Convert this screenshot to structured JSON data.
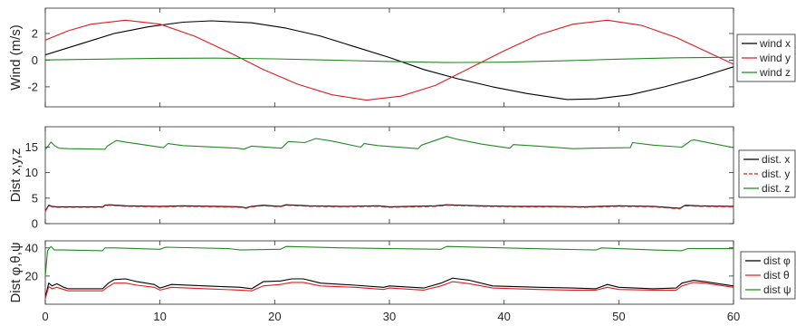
{
  "chart_data": [
    {
      "type": "line",
      "ylabel": "Wind (m/s)",
      "xlim": [
        0,
        60
      ],
      "ylim": [
        -3.5,
        3.9
      ],
      "yticks": [
        2,
        0,
        -2
      ],
      "xtick_labels_shown": false,
      "grid": false,
      "legend_position": "right",
      "series": [
        {
          "name": "wind x",
          "color": "#000000",
          "x": [
            0,
            3,
            6,
            9,
            12,
            14.5,
            18,
            21,
            24,
            27,
            30,
            33,
            36,
            39,
            42,
            45.5,
            48,
            51,
            54,
            57,
            60
          ],
          "y": [
            0.4,
            1.2,
            2.0,
            2.5,
            2.85,
            2.95,
            2.8,
            2.4,
            1.8,
            1.0,
            0.2,
            -0.7,
            -1.4,
            -2.0,
            -2.5,
            -2.95,
            -2.9,
            -2.6,
            -2.0,
            -1.3,
            -0.5
          ]
        },
        {
          "name": "wind y",
          "color": "#e41a1c",
          "x": [
            0,
            2,
            4,
            7,
            10,
            13,
            16,
            19,
            22,
            25,
            28,
            31,
            34,
            37,
            40,
            43,
            46,
            49,
            52,
            55,
            58,
            60
          ],
          "y": [
            1.5,
            2.2,
            2.7,
            3.0,
            2.7,
            1.8,
            0.6,
            -0.7,
            -1.8,
            -2.6,
            -3.0,
            -2.7,
            -1.9,
            -0.6,
            0.7,
            1.9,
            2.7,
            3.0,
            2.6,
            1.7,
            0.5,
            -0.3
          ]
        },
        {
          "name": "wind z",
          "color": "#228b22",
          "x": [
            0,
            5,
            10,
            15,
            20,
            25,
            30,
            35,
            40,
            45,
            50,
            55,
            60
          ],
          "y": [
            0.02,
            0.08,
            0.14,
            0.15,
            0.1,
            0.0,
            -0.1,
            -0.18,
            -0.15,
            -0.05,
            0.08,
            0.18,
            0.22
          ]
        }
      ]
    },
    {
      "type": "line",
      "ylabel": "Dist x,y,z",
      "xlim": [
        0,
        60
      ],
      "ylim": [
        0,
        19
      ],
      "yticks": [
        15,
        10,
        5,
        0
      ],
      "xtick_labels_shown": false,
      "grid": false,
      "legend_position": "right",
      "series": [
        {
          "name": "dist. x",
          "color": "#000000",
          "dash": "solid",
          "x": [
            0,
            0.3,
            0.6,
            1,
            2,
            5,
            5.2,
            5.6,
            7,
            10,
            12,
            15,
            17,
            17.5,
            18,
            19,
            20.5,
            21,
            23,
            26,
            29,
            30,
            34,
            35,
            38,
            41,
            44,
            47,
            50,
            53,
            55.3,
            55.8,
            57,
            60
          ],
          "y": [
            2.5,
            3.6,
            3.4,
            3.3,
            3.3,
            3.3,
            3.6,
            3.7,
            3.5,
            3.4,
            3.5,
            3.4,
            3.3,
            3.1,
            3.4,
            3.6,
            3.4,
            3.7,
            3.5,
            3.4,
            3.5,
            3.3,
            3.5,
            3.7,
            3.5,
            3.4,
            3.4,
            3.3,
            3.5,
            3.4,
            3.0,
            3.6,
            3.5,
            3.4
          ]
        },
        {
          "name": "dist. y",
          "color": "#e41a1c",
          "dash": "dashed",
          "x": [
            0,
            0.3,
            0.6,
            1,
            2,
            5,
            5.2,
            5.6,
            7,
            10,
            12,
            15,
            17,
            17.5,
            18,
            19,
            20.5,
            21,
            23,
            26,
            29,
            30,
            34,
            35,
            38,
            41,
            44,
            47,
            50,
            53,
            55.3,
            55.8,
            57,
            60
          ],
          "y": [
            2.4,
            3.5,
            3.3,
            3.2,
            3.2,
            3.2,
            3.5,
            3.6,
            3.4,
            3.3,
            3.4,
            3.3,
            3.2,
            3.0,
            3.3,
            3.5,
            3.3,
            3.6,
            3.4,
            3.3,
            3.4,
            3.2,
            3.4,
            3.6,
            3.4,
            3.3,
            3.3,
            3.2,
            3.4,
            3.3,
            2.9,
            3.5,
            3.4,
            3.3
          ]
        },
        {
          "name": "dist. z",
          "color": "#228b22",
          "dash": "solid",
          "x": [
            0,
            0.5,
            0.8,
            1.2,
            2,
            5.2,
            5.4,
            6.2,
            7,
            10.3,
            10.7,
            12,
            16.8,
            17.3,
            18,
            20.6,
            21.2,
            22.6,
            23.6,
            25,
            27.5,
            27.8,
            29,
            32.5,
            32.8,
            35,
            36,
            38,
            40.5,
            40.8,
            43,
            46,
            47.5,
            51,
            51.2,
            53,
            55.5,
            56.3,
            56.6,
            60
          ],
          "y": [
            14.5,
            16.0,
            15.3,
            14.8,
            14.7,
            14.6,
            15.2,
            16.3,
            16.0,
            14.9,
            15.7,
            15.3,
            14.8,
            14.6,
            15.2,
            14.8,
            16.1,
            15.9,
            16.7,
            16.2,
            15.0,
            15.7,
            15.3,
            14.7,
            15.4,
            17.1,
            16.5,
            15.6,
            14.8,
            15.5,
            15.2,
            14.7,
            14.8,
            14.9,
            15.9,
            15.4,
            15.0,
            16.3,
            16.4,
            14.9
          ]
        }
      ]
    },
    {
      "type": "line",
      "ylabel": "Dist φ,θ,ψ",
      "xlim": [
        0,
        60
      ],
      "ylim": [
        0,
        45
      ],
      "yticks": [
        40,
        20
      ],
      "xticks": [
        0,
        10,
        20,
        30,
        40,
        50,
        60
      ],
      "xtick_labels_shown": true,
      "grid": false,
      "legend_position": "right",
      "series": [
        {
          "name": "dist φ",
          "color": "#000000",
          "x": [
            0,
            0.3,
            0.6,
            1,
            1.6,
            2,
            5,
            5.5,
            6,
            7,
            8,
            9.5,
            10,
            11,
            14,
            17,
            18,
            19,
            20.5,
            21.5,
            22.5,
            24,
            27,
            29.5,
            30,
            33,
            34.5,
            35.5,
            37,
            39,
            41,
            43,
            46,
            48,
            49,
            50,
            53,
            55,
            55.5,
            56.5,
            57.5,
            60
          ],
          "y": [
            5,
            15,
            13,
            14.5,
            12,
            11,
            11,
            15,
            17.5,
            18,
            16,
            14,
            11.5,
            14,
            13,
            12,
            11,
            16,
            16.5,
            18,
            18,
            15,
            13.5,
            12,
            13,
            11.5,
            15,
            18.5,
            17,
            13,
            12.5,
            12,
            11.5,
            11,
            14,
            12,
            11,
            11.5,
            15,
            17,
            16,
            13
          ]
        },
        {
          "name": "dist θ",
          "color": "#e41a1c",
          "x": [
            0,
            0.3,
            0.6,
            1,
            1.6,
            2,
            5,
            5.5,
            6,
            7,
            8,
            9.5,
            10,
            11,
            14,
            17,
            18,
            19,
            20.5,
            21.5,
            22.5,
            24,
            27,
            29.5,
            30,
            33,
            34.5,
            35.5,
            37,
            39,
            41,
            43,
            46,
            48,
            49,
            50,
            53,
            55,
            55.5,
            56.5,
            57.5,
            60
          ],
          "y": [
            4,
            12.5,
            11,
            12,
            10.5,
            9.5,
            9.5,
            12.5,
            15,
            15,
            13.5,
            12,
            10,
            12,
            11,
            10,
            9.5,
            13,
            14,
            15.5,
            15.5,
            13,
            12,
            10.5,
            11.5,
            10,
            13,
            16,
            14.5,
            11.5,
            11,
            10.5,
            10,
            10,
            12,
            10.5,
            10,
            10,
            13,
            15.5,
            15,
            12
          ]
        },
        {
          "name": "dist ψ",
          "color": "#228b22",
          "x": [
            0,
            0.2,
            0.5,
            0.8,
            1.5,
            5,
            5.2,
            6,
            10,
            10.5,
            16,
            17,
            20.5,
            21,
            26,
            30,
            34.5,
            35,
            40,
            45,
            48,
            48.5,
            53,
            55.5,
            56,
            60
          ],
          "y": [
            20,
            38,
            41,
            38.5,
            38.5,
            38,
            40,
            40,
            39,
            40.5,
            39.5,
            38.5,
            39,
            41,
            40,
            39.5,
            39,
            41,
            40,
            39,
            38.5,
            40,
            38.5,
            38,
            39.5,
            39.5
          ]
        }
      ]
    }
  ]
}
